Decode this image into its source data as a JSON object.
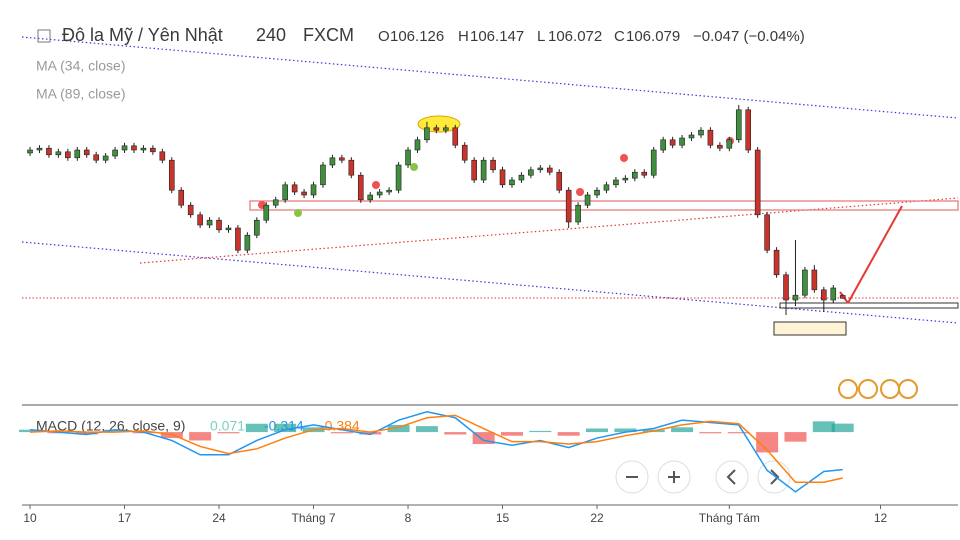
{
  "chart_data": {
    "type": "candlestick",
    "title": "Đô la Mỹ / Yên Nhật",
    "interval": "240",
    "source": "FXCM",
    "ohlc_labels": [
      "O",
      "H",
      "L",
      "C"
    ],
    "change": "−0.047 (−0.04%)",
    "indicators": [
      "MA (34, close)",
      "MA (89, close)"
    ],
    "up_color": "#3f8f3f",
    "down_color": "#c8342c",
    "xlim": [
      -0.85,
      98.2
    ],
    "ylim": [
      104.3,
      111.05
    ],
    "xticks": [
      {
        "value": 0,
        "label": "10"
      },
      {
        "value": 10,
        "label": "17"
      },
      {
        "value": 20,
        "label": "24"
      },
      {
        "value": 30,
        "label": "Tháng 7"
      },
      {
        "value": 40,
        "label": "8"
      },
      {
        "value": 50,
        "label": "15"
      },
      {
        "value": 60,
        "label": "22"
      },
      {
        "value": 74,
        "label": "Tháng Tám"
      },
      {
        "value": 90,
        "label": "12"
      }
    ],
    "open": [
      108.5,
      108.55,
      108.58,
      108.47,
      108.52,
      108.42,
      108.55,
      108.47,
      108.38,
      108.45,
      108.55,
      108.62,
      108.55,
      108.58,
      108.52,
      108.38,
      107.88,
      107.63,
      107.47,
      107.3,
      107.38,
      107.22,
      107.25,
      106.88,
      107.13,
      107.38,
      107.63,
      107.72,
      107.97,
      107.85,
      107.8,
      107.97,
      108.3,
      108.42,
      108.38,
      108.13,
      107.72,
      107.8,
      107.85,
      107.88,
      108.3,
      108.55,
      108.72,
      108.92,
      108.88,
      108.92,
      108.63,
      108.38,
      108.05,
      108.38,
      108.22,
      107.97,
      108.05,
      108.13,
      108.22,
      108.25,
      108.18,
      107.88,
      107.35,
      107.63,
      107.8,
      107.88,
      107.97,
      108.05,
      108.08,
      108.18,
      108.13,
      108.55,
      108.72,
      108.63,
      108.75,
      108.8,
      108.88,
      108.63,
      108.58,
      108.72,
      109.22,
      108.55,
      107.47,
      106.88,
      106.47,
      106.05,
      106.13,
      106.55,
      106.22,
      106.05,
      106.126
    ],
    "high": [
      108.6,
      108.63,
      108.63,
      108.57,
      108.57,
      108.6,
      108.6,
      108.52,
      108.5,
      108.6,
      108.67,
      108.67,
      108.63,
      108.63,
      108.57,
      108.43,
      107.93,
      107.68,
      107.52,
      107.43,
      107.43,
      107.3,
      107.3,
      107.18,
      107.43,
      107.68,
      107.77,
      108.02,
      108.02,
      107.9,
      108.02,
      108.35,
      108.47,
      108.47,
      108.43,
      108.18,
      107.85,
      107.9,
      107.93,
      108.35,
      108.6,
      108.77,
      109.02,
      108.97,
      108.97,
      108.97,
      108.68,
      108.43,
      108.43,
      108.43,
      108.27,
      108.1,
      108.18,
      108.27,
      108.3,
      108.3,
      108.23,
      107.93,
      107.68,
      107.85,
      107.93,
      108.02,
      108.1,
      108.13,
      108.23,
      108.23,
      108.6,
      108.77,
      108.77,
      108.8,
      108.85,
      108.93,
      108.93,
      108.68,
      108.77,
      109.3,
      109.27,
      108.6,
      107.52,
      106.93,
      106.52,
      107.05,
      106.6,
      106.63,
      106.27,
      106.3,
      106.147
    ],
    "low": [
      108.45,
      108.5,
      108.42,
      108.42,
      108.37,
      108.37,
      108.42,
      108.33,
      108.33,
      108.4,
      108.5,
      108.5,
      108.5,
      108.47,
      108.33,
      107.83,
      107.58,
      107.42,
      107.25,
      107.25,
      107.17,
      107.17,
      106.83,
      106.83,
      107.08,
      107.33,
      107.58,
      107.67,
      107.8,
      107.75,
      107.75,
      107.92,
      108.25,
      108.33,
      108.08,
      107.67,
      107.67,
      107.75,
      107.8,
      107.83,
      108.25,
      108.5,
      108.67,
      108.83,
      108.83,
      108.58,
      108.33,
      108.0,
      108.0,
      108.17,
      107.92,
      107.92,
      108.0,
      108.08,
      108.17,
      108.13,
      107.83,
      107.25,
      107.3,
      107.58,
      107.75,
      107.83,
      107.92,
      108.0,
      108.03,
      108.08,
      108.08,
      108.5,
      108.58,
      108.58,
      108.7,
      108.75,
      108.58,
      108.53,
      108.53,
      108.67,
      108.5,
      107.42,
      106.83,
      106.42,
      105.8,
      105.95,
      106.08,
      106.17,
      105.85,
      106.0,
      106.072
    ],
    "close": [
      108.55,
      108.58,
      108.47,
      108.52,
      108.42,
      108.55,
      108.47,
      108.38,
      108.45,
      108.55,
      108.62,
      108.55,
      108.58,
      108.52,
      108.38,
      107.88,
      107.63,
      107.47,
      107.3,
      107.38,
      107.22,
      107.25,
      106.88,
      107.13,
      107.38,
      107.63,
      107.72,
      107.97,
      107.85,
      107.8,
      107.97,
      108.3,
      108.42,
      108.38,
      108.13,
      107.72,
      107.8,
      107.85,
      107.88,
      108.3,
      108.55,
      108.72,
      108.92,
      108.88,
      108.92,
      108.63,
      108.38,
      108.05,
      108.38,
      108.22,
      107.97,
      108.05,
      108.13,
      108.22,
      108.25,
      108.18,
      107.88,
      107.35,
      107.63,
      107.8,
      107.88,
      107.97,
      108.05,
      108.08,
      108.18,
      108.13,
      108.55,
      108.72,
      108.63,
      108.75,
      108.8,
      108.88,
      108.63,
      108.58,
      108.72,
      109.22,
      108.55,
      107.47,
      106.88,
      106.47,
      106.05,
      106.13,
      106.55,
      106.22,
      106.05,
      106.25,
      106.079
    ],
    "macd": {
      "label": "MACD (12, 26, close, 9)",
      "x": [
        0,
        3,
        6,
        9,
        12,
        15,
        18,
        21,
        24,
        27,
        30,
        33,
        36,
        39,
        42,
        45,
        48,
        51,
        54,
        57,
        60,
        63,
        66,
        69,
        72,
        75,
        78,
        81,
        84,
        86
      ],
      "ylim": [
        -0.61,
        0.21
      ],
      "histogram": {
        "up_color": "#26a69a",
        "down_color": "#ef5350",
        "label_color": "#7fcfc6",
        "values": [
          0.02,
          -0.01,
          -0.02,
          0.02,
          -0.01,
          -0.05,
          -0.07,
          -0.01,
          0.07,
          0.07,
          0.04,
          -0.01,
          -0.02,
          0.06,
          0.05,
          -0.02,
          -0.1,
          -0.03,
          0.01,
          -0.03,
          0.03,
          0.03,
          0.02,
          0.04,
          -0.01,
          -0.01,
          -0.17,
          -0.08,
          0.09,
          0.071
        ]
      },
      "line": {
        "color": "#2196f3",
        "values": [
          0.02,
          0,
          -0.02,
          0.02,
          0,
          -0.07,
          -0.19,
          -0.19,
          -0.07,
          0.02,
          0.06,
          0.02,
          -0.02,
          0.1,
          0.17,
          0.12,
          -0.07,
          -0.11,
          -0.07,
          -0.13,
          -0.05,
          0,
          0.03,
          0.1,
          0.08,
          0.06,
          -0.32,
          -0.5,
          -0.33,
          -0.314
        ]
      },
      "signal": {
        "color": "#ff7f0e",
        "values": [
          0,
          0.01,
          0,
          0,
          0.01,
          -0.02,
          -0.12,
          -0.18,
          -0.14,
          -0.05,
          0.02,
          0.03,
          0,
          0.04,
          0.12,
          0.14,
          0.03,
          -0.08,
          -0.08,
          -0.1,
          -0.08,
          -0.03,
          0.01,
          0.06,
          0.09,
          0.07,
          -0.15,
          -0.42,
          -0.42,
          -0.384
        ]
      }
    }
  }
}
